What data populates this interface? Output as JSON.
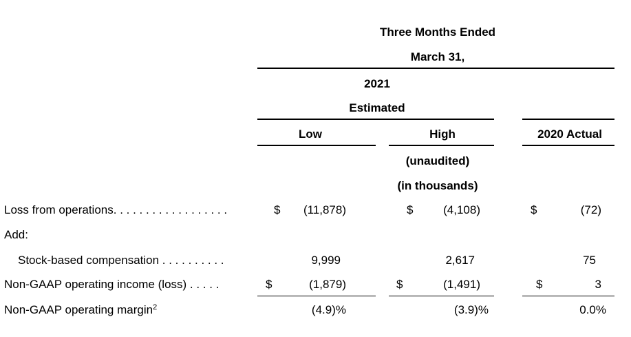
{
  "header": {
    "period": "Three Months Ended",
    "date": "March 31,",
    "year": "2021",
    "estimated": "Estimated",
    "col_low": "Low",
    "col_high": "High",
    "col_actual": "2020 Actual",
    "unaudited": "(unaudited)",
    "units": "(in thousands)"
  },
  "rows": [
    {
      "label": "Loss from operations. . . . . . . . . . . . . . . . . .",
      "low_sym": "$",
      "low": "(11,878)",
      "high_sym": "$",
      "high": "(4,108)",
      "actual_sym": "$",
      "actual": "(72)"
    },
    {
      "label": "Add:"
    },
    {
      "label": "Stock-based compensation . . . . . . . . . .",
      "low": "9,999",
      "high": "2,617",
      "actual": "75"
    },
    {
      "label": "Non-GAAP operating income (loss) . . . . .",
      "low_sym": "$",
      "low": "(1,879)",
      "high_sym": "$",
      "high": "(1,491)",
      "actual_sym": "$",
      "actual": "3"
    },
    {
      "label": "Non-GAAP operating margin",
      "label_sup": "2",
      "low": "(4.9)%",
      "high": "(3.9)%",
      "actual": "0.0%"
    }
  ]
}
